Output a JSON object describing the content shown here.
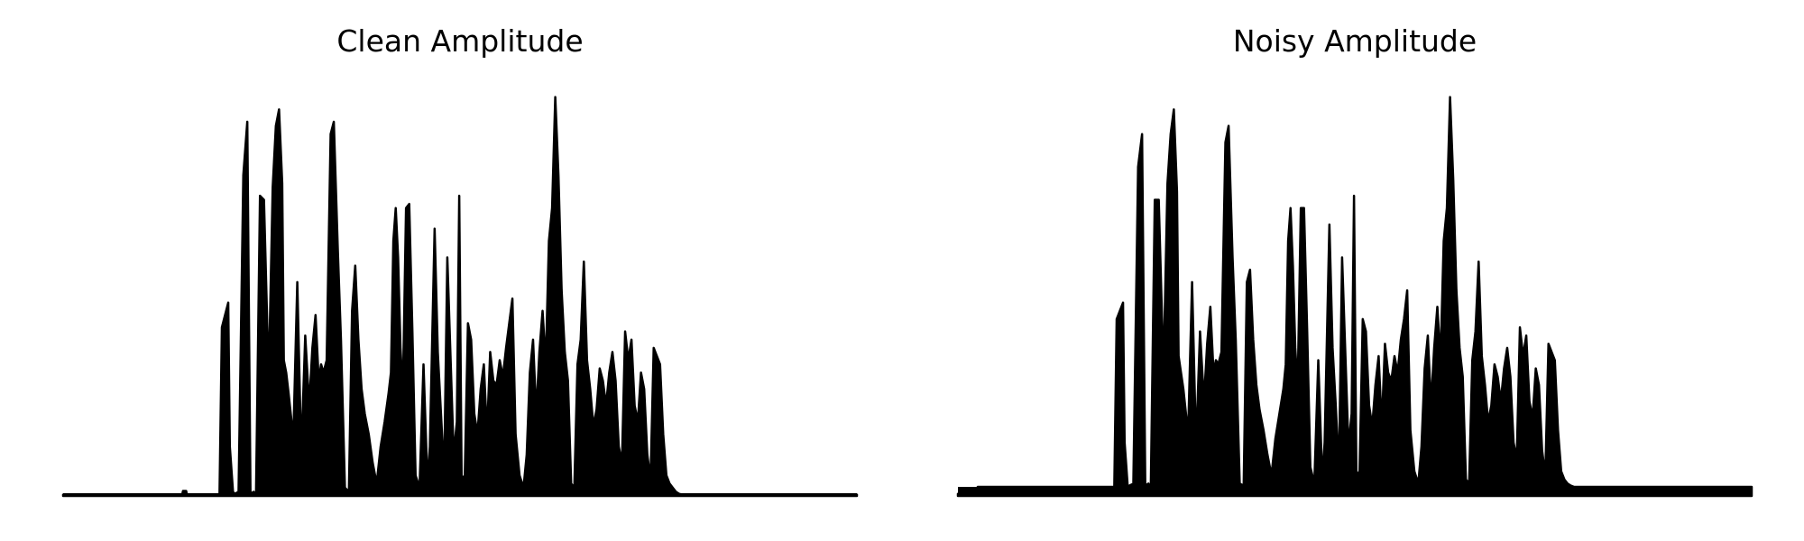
{
  "chart_data": [
    {
      "type": "area",
      "title": "Clean Amplitude",
      "xlabel": "",
      "ylabel": "",
      "axes_visible": false,
      "grid": false,
      "legend": "none",
      "color": "#000000",
      "x_range": [
        0,
        1
      ],
      "y_range": [
        0,
        1
      ],
      "baseline_noise": 0.003,
      "x": [
        0.0,
        0.15,
        0.151,
        0.155,
        0.156,
        0.197,
        0.2,
        0.208,
        0.21,
        0.214,
        0.216,
        0.221,
        0.227,
        0.232,
        0.236,
        0.24,
        0.243,
        0.248,
        0.253,
        0.259,
        0.264,
        0.268,
        0.272,
        0.276,
        0.278,
        0.281,
        0.284,
        0.29,
        0.295,
        0.3,
        0.305,
        0.31,
        0.314,
        0.318,
        0.322,
        0.325,
        0.328,
        0.332,
        0.337,
        0.341,
        0.346,
        0.35,
        0.355,
        0.36,
        0.364,
        0.368,
        0.372,
        0.376,
        0.38,
        0.385,
        0.39,
        0.395,
        0.4,
        0.405,
        0.41,
        0.413,
        0.416,
        0.419,
        0.422,
        0.425,
        0.428,
        0.432,
        0.436,
        0.44,
        0.444,
        0.449,
        0.454,
        0.459,
        0.462,
        0.468,
        0.472,
        0.476,
        0.48,
        0.484,
        0.488,
        0.492,
        0.496,
        0.499,
        0.502,
        0.506,
        0.51,
        0.514,
        0.518,
        0.522,
        0.526,
        0.53,
        0.534,
        0.538,
        0.542,
        0.546,
        0.55,
        0.554,
        0.558,
        0.562,
        0.566,
        0.57,
        0.575,
        0.58,
        0.584,
        0.588,
        0.592,
        0.596,
        0.6,
        0.604,
        0.608,
        0.612,
        0.616,
        0.62,
        0.624,
        0.628,
        0.632,
        0.636,
        0.64,
        0.644,
        0.648,
        0.652,
        0.656,
        0.66,
        0.664,
        0.668,
        0.672,
        0.676,
        0.68,
        0.684,
        0.688,
        0.692,
        0.696,
        0.7,
        0.704,
        0.708,
        0.712,
        0.716,
        0.72,
        0.724,
        0.728,
        0.732,
        0.736,
        0.74,
        0.744,
        0.748,
        0.752,
        0.756,
        0.76,
        0.764,
        0.768,
        0.772,
        0.776,
        0.78,
        0.784,
        0.788,
        0.792,
        0.796,
        0.8,
        0.804,
        0.808,
        0.812,
        0.816,
        0.82,
        0.824,
        0.828,
        0.832,
        0.836,
        0.84,
        0.844,
        0.848,
        0.852,
        0.856,
        0.86,
        0.864,
        0.868,
        0.872,
        0.876,
        0.88,
        0.884,
        0.888,
        0.892,
        0.896,
        0.9,
        0.904,
        0.908,
        1.0
      ],
      "y": [
        0.003,
        0.003,
        0.012,
        0.012,
        0.003,
        0.003,
        0.41,
        0.47,
        0.12,
        0.01,
        0.005,
        0.01,
        0.78,
        0.91,
        0.005,
        0.01,
        0.004,
        0.73,
        0.72,
        0.28,
        0.75,
        0.9,
        0.94,
        0.76,
        0.33,
        0.3,
        0.25,
        0.14,
        0.52,
        0.1,
        0.39,
        0.22,
        0.36,
        0.44,
        0.28,
        0.32,
        0.3,
        0.33,
        0.88,
        0.91,
        0.6,
        0.38,
        0.02,
        0.01,
        0.45,
        0.56,
        0.38,
        0.26,
        0.2,
        0.15,
        0.08,
        0.03,
        0.12,
        0.18,
        0.25,
        0.3,
        0.62,
        0.7,
        0.58,
        0.36,
        0.25,
        0.7,
        0.71,
        0.4,
        0.05,
        0.02,
        0.32,
        0.03,
        0.12,
        0.65,
        0.35,
        0.2,
        0.05,
        0.58,
        0.34,
        0.1,
        0.18,
        0.73,
        0.04,
        0.05,
        0.42,
        0.38,
        0.2,
        0.15,
        0.26,
        0.32,
        0.15,
        0.35,
        0.28,
        0.27,
        0.33,
        0.29,
        0.36,
        0.42,
        0.48,
        0.15,
        0.05,
        0.02,
        0.1,
        0.3,
        0.38,
        0.2,
        0.35,
        0.45,
        0.32,
        0.62,
        0.7,
        0.97,
        0.78,
        0.5,
        0.35,
        0.28,
        0.03,
        0.02,
        0.32,
        0.38,
        0.57,
        0.33,
        0.26,
        0.17,
        0.21,
        0.31,
        0.28,
        0.22,
        0.3,
        0.35,
        0.28,
        0.12,
        0.08,
        0.4,
        0.33,
        0.38,
        0.22,
        0.18,
        0.3,
        0.26,
        0.1,
        0.04,
        0.36,
        0.34,
        0.32,
        0.15,
        0.05,
        0.03,
        0.02,
        0.01,
        0.005,
        0.003,
        0.003,
        0.003,
        0.003,
        0.003,
        0.003,
        0.003,
        0.003,
        0.003,
        0.003,
        0.003,
        0.003,
        0.003,
        0.003,
        0.003,
        0.003,
        0.003,
        0.003,
        0.003,
        0.003,
        0.003,
        0.003,
        0.003,
        0.003,
        0.003,
        0.003,
        0.003,
        0.003,
        0.003,
        0.003,
        0.003,
        0.003,
        0.003,
        0.003
      ]
    },
    {
      "type": "area",
      "title": "Noisy Amplitude",
      "xlabel": "",
      "ylabel": "",
      "axes_visible": false,
      "grid": false,
      "legend": "none",
      "color": "#000000",
      "x_range": [
        0,
        1
      ],
      "y_range": [
        0,
        1
      ],
      "baseline_noise": 0.022,
      "x": [
        0.0,
        0.02,
        0.025,
        0.197,
        0.2,
        0.208,
        0.21,
        0.214,
        0.216,
        0.221,
        0.227,
        0.232,
        0.236,
        0.24,
        0.243,
        0.248,
        0.253,
        0.259,
        0.264,
        0.268,
        0.272,
        0.276,
        0.278,
        0.281,
        0.284,
        0.29,
        0.295,
        0.3,
        0.305,
        0.31,
        0.314,
        0.318,
        0.322,
        0.325,
        0.328,
        0.332,
        0.337,
        0.341,
        0.346,
        0.35,
        0.355,
        0.36,
        0.364,
        0.368,
        0.372,
        0.376,
        0.38,
        0.385,
        0.39,
        0.395,
        0.4,
        0.405,
        0.41,
        0.413,
        0.416,
        0.419,
        0.422,
        0.425,
        0.428,
        0.432,
        0.436,
        0.44,
        0.444,
        0.449,
        0.454,
        0.459,
        0.462,
        0.468,
        0.472,
        0.476,
        0.48,
        0.484,
        0.488,
        0.492,
        0.496,
        0.499,
        0.502,
        0.506,
        0.51,
        0.514,
        0.518,
        0.522,
        0.526,
        0.53,
        0.534,
        0.538,
        0.542,
        0.546,
        0.55,
        0.554,
        0.558,
        0.562,
        0.566,
        0.57,
        0.575,
        0.58,
        0.584,
        0.588,
        0.592,
        0.596,
        0.6,
        0.604,
        0.608,
        0.612,
        0.616,
        0.62,
        0.624,
        0.628,
        0.632,
        0.636,
        0.64,
        0.644,
        0.648,
        0.652,
        0.656,
        0.66,
        0.664,
        0.668,
        0.672,
        0.676,
        0.68,
        0.684,
        0.688,
        0.692,
        0.696,
        0.7,
        0.704,
        0.708,
        0.712,
        0.716,
        0.72,
        0.724,
        0.728,
        0.732,
        0.736,
        0.74,
        0.744,
        0.748,
        0.752,
        0.756,
        0.76,
        0.764,
        0.768,
        0.772,
        0.776,
        0.78,
        0.784,
        0.788,
        0.792,
        0.796,
        0.8,
        0.804,
        0.808,
        0.812,
        0.816,
        0.82,
        0.824,
        0.828,
        0.832,
        0.836,
        0.84,
        0.844,
        0.848,
        0.852,
        0.856,
        0.86,
        0.864,
        0.868,
        0.872,
        0.876,
        0.88,
        0.884,
        0.888,
        0.892,
        0.896,
        0.9,
        0.904,
        0.908,
        1.0
      ],
      "y": [
        0.005,
        0.005,
        0.022,
        0.022,
        0.43,
        0.47,
        0.13,
        0.02,
        0.025,
        0.03,
        0.8,
        0.88,
        0.025,
        0.03,
        0.02,
        0.72,
        0.72,
        0.3,
        0.76,
        0.88,
        0.94,
        0.74,
        0.34,
        0.3,
        0.26,
        0.15,
        0.52,
        0.12,
        0.4,
        0.23,
        0.37,
        0.46,
        0.3,
        0.33,
        0.32,
        0.35,
        0.86,
        0.9,
        0.58,
        0.38,
        0.03,
        0.025,
        0.52,
        0.55,
        0.38,
        0.27,
        0.21,
        0.16,
        0.1,
        0.05,
        0.14,
        0.2,
        0.26,
        0.32,
        0.62,
        0.7,
        0.56,
        0.36,
        0.26,
        0.7,
        0.7,
        0.4,
        0.07,
        0.03,
        0.33,
        0.04,
        0.13,
        0.66,
        0.36,
        0.22,
        0.06,
        0.58,
        0.35,
        0.12,
        0.2,
        0.73,
        0.05,
        0.06,
        0.43,
        0.4,
        0.22,
        0.17,
        0.27,
        0.34,
        0.17,
        0.37,
        0.3,
        0.28,
        0.34,
        0.3,
        0.38,
        0.43,
        0.5,
        0.16,
        0.06,
        0.03,
        0.12,
        0.31,
        0.39,
        0.22,
        0.36,
        0.46,
        0.33,
        0.62,
        0.7,
        0.97,
        0.77,
        0.5,
        0.36,
        0.29,
        0.04,
        0.03,
        0.33,
        0.4,
        0.57,
        0.34,
        0.27,
        0.18,
        0.22,
        0.32,
        0.29,
        0.23,
        0.31,
        0.36,
        0.29,
        0.13,
        0.09,
        0.41,
        0.34,
        0.39,
        0.23,
        0.19,
        0.31,
        0.27,
        0.11,
        0.05,
        0.37,
        0.35,
        0.33,
        0.16,
        0.06,
        0.04,
        0.03,
        0.025,
        0.022,
        0.022,
        0.022,
        0.022,
        0.022,
        0.022,
        0.022,
        0.022,
        0.022,
        0.022,
        0.022,
        0.022,
        0.022,
        0.022,
        0.022,
        0.022,
        0.022,
        0.022,
        0.022,
        0.022,
        0.022,
        0.022,
        0.022,
        0.022,
        0.022,
        0.022,
        0.022,
        0.022,
        0.022,
        0.022,
        0.022,
        0.022,
        0.022,
        0.022,
        0.022
      ]
    }
  ]
}
